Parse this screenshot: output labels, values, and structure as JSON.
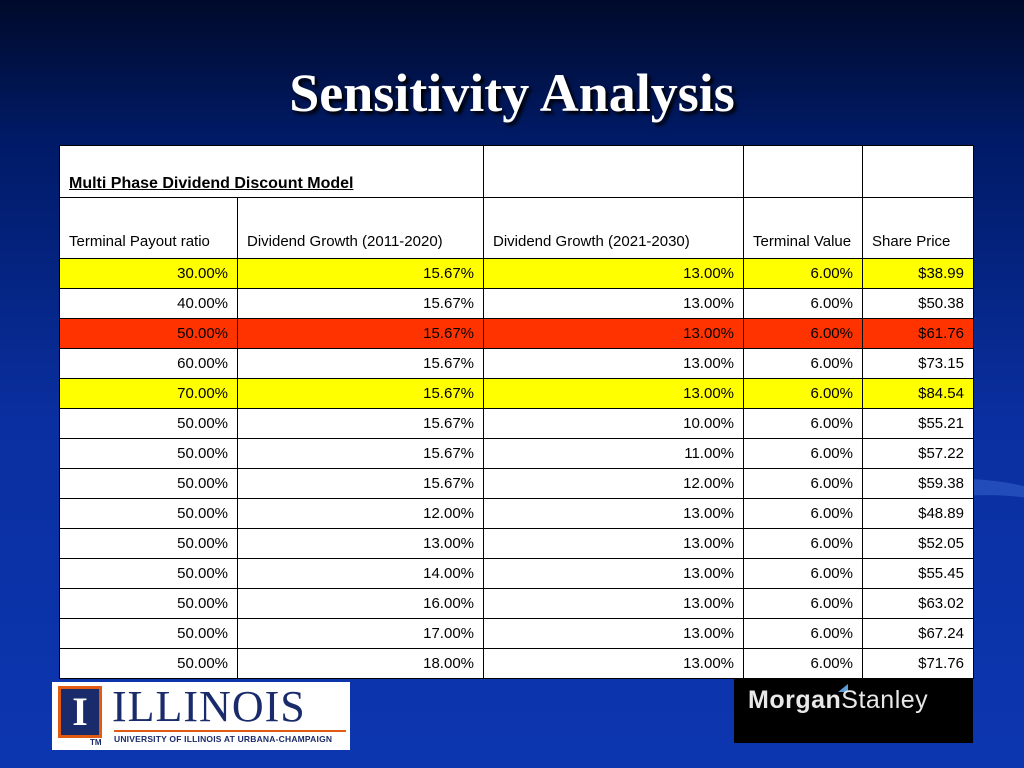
{
  "slide": {
    "title": "Sensitivity Analysis"
  },
  "table": {
    "title": "Multi Phase Dividend Discount Model",
    "headers": [
      "Terminal Payout ratio",
      "Dividend Growth (2011-2020)",
      "Dividend Growth (2021-2030)",
      "Terminal Value",
      "Share Price"
    ],
    "rows": [
      {
        "highlight": "#ffff00",
        "cells": [
          "30.00%",
          "15.67%",
          "13.00%",
          "6.00%",
          "$38.99"
        ]
      },
      {
        "highlight": "#ffffff",
        "cells": [
          "40.00%",
          "15.67%",
          "13.00%",
          "6.00%",
          "$50.38"
        ]
      },
      {
        "highlight": "#ff3300",
        "cells": [
          "50.00%",
          "15.67%",
          "13.00%",
          "6.00%",
          "$61.76"
        ]
      },
      {
        "highlight": "#ffffff",
        "cells": [
          "60.00%",
          "15.67%",
          "13.00%",
          "6.00%",
          "$73.15"
        ]
      },
      {
        "highlight": "#ffff00",
        "cells": [
          "70.00%",
          "15.67%",
          "13.00%",
          "6.00%",
          "$84.54"
        ]
      },
      {
        "highlight": "#ffffff",
        "cells": [
          "50.00%",
          "15.67%",
          "10.00%",
          "6.00%",
          "$55.21"
        ]
      },
      {
        "highlight": "#ffffff",
        "cells": [
          "50.00%",
          "15.67%",
          "11.00%",
          "6.00%",
          "$57.22"
        ]
      },
      {
        "highlight": "#ffffff",
        "cells": [
          "50.00%",
          "15.67%",
          "12.00%",
          "6.00%",
          "$59.38"
        ]
      },
      {
        "highlight": "#ffffff",
        "cells": [
          "50.00%",
          "12.00%",
          "13.00%",
          "6.00%",
          "$48.89"
        ]
      },
      {
        "highlight": "#ffffff",
        "cells": [
          "50.00%",
          "13.00%",
          "13.00%",
          "6.00%",
          "$52.05"
        ]
      },
      {
        "highlight": "#ffffff",
        "cells": [
          "50.00%",
          "14.00%",
          "13.00%",
          "6.00%",
          "$55.45"
        ]
      },
      {
        "highlight": "#ffffff",
        "cells": [
          "50.00%",
          "16.00%",
          "13.00%",
          "6.00%",
          "$63.02"
        ]
      },
      {
        "highlight": "#ffffff",
        "cells": [
          "50.00%",
          "17.00%",
          "13.00%",
          "6.00%",
          "$67.24"
        ]
      },
      {
        "highlight": "#ffffff",
        "cells": [
          "50.00%",
          "18.00%",
          "13.00%",
          "6.00%",
          "$71.76"
        ]
      }
    ]
  },
  "logos": {
    "illinois": {
      "mark": "I",
      "tm": "TM",
      "wordmark": "ILLINOIS",
      "subtitle": "UNIVERSITY OF ILLINOIS AT URBANA-CHAMPAIGN"
    },
    "morgan_stanley": {
      "part1": "Morgan",
      "part2": "Stanley"
    }
  },
  "colors": {
    "background": "#0a2fa0",
    "highlight_yellow": "#ffff00",
    "highlight_red": "#ff3300",
    "illinois_blue": "#1a2b6b",
    "illinois_orange": "#e05a12"
  }
}
